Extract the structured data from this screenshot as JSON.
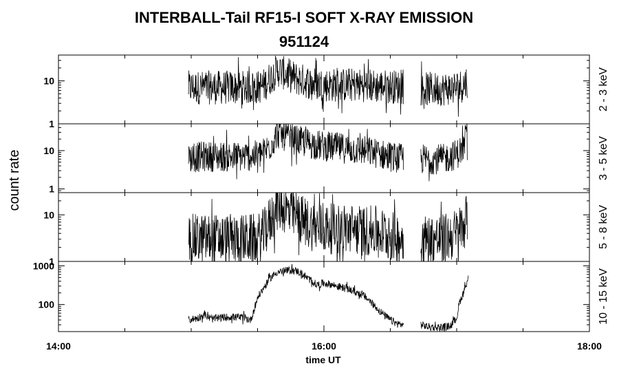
{
  "header": {
    "title": "INTERBALL-Tail RF15-I SOFT X-RAY EMISSION",
    "subtitle": "951124"
  },
  "chart_data": {
    "type": "line",
    "title": "INTERBALL-Tail RF15-I SOFT X-RAY EMISSION",
    "subtitle": "951124",
    "xlabel": "time UT",
    "ylabel": "count rate",
    "x_unit": "hours UT",
    "xlim": [
      14.0,
      18.0
    ],
    "x_ticks": [
      14.0,
      16.0,
      18.0
    ],
    "x_tick_labels": [
      "14:00",
      "16:00",
      "18:00"
    ],
    "x_minor_ticks": [
      14.5,
      15.0,
      15.5,
      16.5,
      17.0,
      17.5
    ],
    "y_scale": "log",
    "grid": false,
    "panels": [
      {
        "name": "2 - 3 keV",
        "ylim": [
          1,
          40
        ],
        "y_ticks": [
          1,
          10
        ],
        "y_tick_labels": [
          "1",
          "10"
        ],
        "series": [
          {
            "x": [
              14.98,
              15.1,
              15.2,
              15.3,
              15.4,
              15.5,
              15.55,
              15.6,
              15.65,
              15.7,
              15.75,
              15.8,
              15.9,
              16.0,
              16.1,
              16.2,
              16.3,
              16.4,
              16.5,
              16.6
            ],
            "y": [
              7,
              7,
              7,
              7,
              7,
              7,
              8,
              12,
              18,
              15,
              13,
              11,
              9,
              8,
              8,
              8,
              8,
              7.5,
              7.5,
              7
            ]
          },
          {
            "x": [
              16.73,
              16.8,
              16.9,
              17.0,
              17.05,
              17.08
            ],
            "y": [
              6.5,
              6.5,
              6.5,
              7,
              8,
              10
            ]
          }
        ]
      },
      {
        "name": "3 - 5 keV",
        "ylim": [
          0.8,
          50
        ],
        "y_ticks": [
          1,
          10
        ],
        "y_tick_labels": [
          "1",
          "10"
        ],
        "series": [
          {
            "x": [
              14.98,
              15.1,
              15.2,
              15.3,
              15.4,
              15.5,
              15.55,
              15.6,
              15.65,
              15.7,
              15.8,
              15.9,
              16.0,
              16.1,
              16.2,
              16.3,
              16.4,
              16.5,
              16.6
            ],
            "y": [
              6.5,
              7,
              7,
              7,
              7,
              7.5,
              9,
              14,
              28,
              24,
              18,
              15,
              13,
              12,
              11,
              10,
              8.5,
              7,
              6
            ]
          },
          {
            "x": [
              16.73,
              16.8,
              16.9,
              17.0,
              17.05,
              17.08
            ],
            "y": [
              6,
              6,
              6,
              8,
              12,
              20
            ]
          }
        ]
      },
      {
        "name": "5 - 8 keV",
        "ylim": [
          1,
          30
        ],
        "y_ticks": [
          1,
          10
        ],
        "y_tick_labels": [
          "1",
          "10"
        ],
        "series": [
          {
            "x": [
              14.98,
              15.1,
              15.2,
              15.3,
              15.4,
              15.5,
              15.55,
              15.6,
              15.65,
              15.7,
              15.8,
              15.9,
              16.0,
              16.1,
              16.2,
              16.3,
              16.4,
              16.5,
              16.6
            ],
            "y": [
              3,
              3,
              3,
              3,
              3,
              3,
              4,
              8,
              16,
              14,
              9,
              6,
              5,
              5,
              5,
              4.5,
              4.5,
              3.5,
              3
            ]
          },
          {
            "x": [
              16.73,
              16.8,
              16.9,
              17.0,
              17.05,
              17.08
            ],
            "y": [
              3,
              3,
              3,
              4,
              6,
              9
            ]
          }
        ]
      },
      {
        "name": "10 - 15 keV",
        "ylim": [
          20,
          1300
        ],
        "y_ticks": [
          100,
          1000
        ],
        "y_tick_labels": [
          "100",
          "1000"
        ],
        "series": [
          {
            "x": [
              14.98,
              15.05,
              15.1,
              15.15,
              15.2,
              15.3,
              15.4,
              15.45,
              15.5,
              15.55,
              15.6,
              15.65,
              15.7,
              15.75,
              15.8,
              15.85,
              15.9,
              15.95,
              16.0,
              16.05,
              16.1,
              16.2,
              16.3,
              16.35,
              16.4,
              16.45,
              16.5,
              16.55,
              16.6
            ],
            "y": [
              40,
              45,
              55,
              42,
              45,
              48,
              45,
              40,
              150,
              280,
              500,
              700,
              720,
              780,
              730,
              560,
              420,
              320,
              360,
              330,
              300,
              240,
              170,
              120,
              80,
              55,
              40,
              32,
              30
            ]
          },
          {
            "x": [
              16.73,
              16.8,
              16.9,
              16.95,
              17.0,
              17.02,
              17.05,
              17.07,
              17.09
            ],
            "y": [
              30,
              26,
              26,
              28,
              45,
              110,
              200,
              330,
              500
            ]
          }
        ]
      }
    ]
  }
}
